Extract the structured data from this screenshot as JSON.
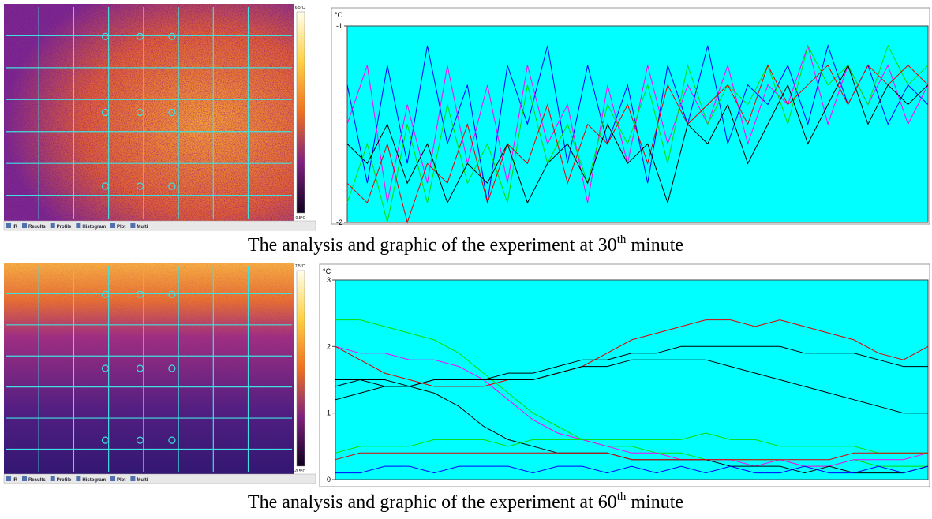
{
  "panels": [
    {
      "image": {
        "scale_max": "6.5°C",
        "scale_min": "-0.5°C",
        "tabs": [
          "IR",
          "Results",
          "Profile",
          "Histogram",
          "Plot",
          "Multi"
        ]
      },
      "chart_data": {
        "type": "line",
        "y_unit": "°C",
        "ylim": [
          -2,
          -1
        ],
        "yticks": [
          -1,
          -2
        ],
        "series": [
          {
            "color": "#0000ff",
            "values": [
              -1.3,
              -1.8,
              -1.2,
              -1.7,
              -1.1,
              -1.6,
              -1.3,
              -1.9,
              -1.2,
              -1.5,
              -1.1,
              -1.7,
              -1.2,
              -1.6,
              -1.3,
              -1.8,
              -1.2,
              -1.5,
              -1.1,
              -1.6,
              -1.3,
              -1.4,
              -1.2,
              -1.5,
              -1.1,
              -1.4,
              -1.2,
              -1.5,
              -1.3,
              -1.4
            ]
          },
          {
            "color": "#ff00ff",
            "values": [
              -1.5,
              -1.2,
              -1.9,
              -1.4,
              -1.8,
              -1.2,
              -1.7,
              -1.3,
              -1.8,
              -1.2,
              -1.6,
              -1.4,
              -1.9,
              -1.3,
              -1.7,
              -1.2,
              -1.6,
              -1.3,
              -1.5,
              -1.2,
              -1.6,
              -1.3,
              -1.4,
              -1.1,
              -1.5,
              -1.2,
              -1.4,
              -1.2,
              -1.5,
              -1.3
            ]
          },
          {
            "color": "#00dd00",
            "values": [
              -1.9,
              -1.6,
              -2.0,
              -1.5,
              -1.9,
              -1.4,
              -1.8,
              -1.6,
              -1.9,
              -1.3,
              -1.7,
              -1.5,
              -1.8,
              -1.4,
              -1.6,
              -1.3,
              -1.7,
              -1.2,
              -1.5,
              -1.3,
              -1.4,
              -1.2,
              -1.5,
              -1.1,
              -1.3,
              -1.2,
              -1.4,
              -1.1,
              -1.3,
              -1.2
            ]
          },
          {
            "color": "#dd0000",
            "values": [
              -1.8,
              -1.9,
              -1.6,
              -2.0,
              -1.7,
              -1.8,
              -1.5,
              -1.9,
              -1.6,
              -1.7,
              -1.4,
              -1.8,
              -1.5,
              -1.6,
              -1.4,
              -1.7,
              -1.3,
              -1.5,
              -1.4,
              -1.3,
              -1.5,
              -1.2,
              -1.4,
              -1.3,
              -1.2,
              -1.4,
              -1.2,
              -1.3,
              -1.2,
              -1.3
            ]
          },
          {
            "color": "#000000",
            "values": [
              -1.6,
              -1.7,
              -1.5,
              -1.8,
              -1.6,
              -1.9,
              -1.7,
              -1.8,
              -1.6,
              -1.9,
              -1.7,
              -1.6,
              -1.8,
              -1.5,
              -1.7,
              -1.6,
              -1.9,
              -1.5,
              -1.6,
              -1.4,
              -1.7,
              -1.5,
              -1.3,
              -1.6,
              -1.4,
              -1.2,
              -1.5,
              -1.3,
              -1.4,
              -1.3
            ]
          }
        ]
      },
      "caption": {
        "text": "The analysis and graphic of the experiment at 30",
        "sup": "th",
        "tail": " minute"
      }
    },
    {
      "image": {
        "scale_max": "7.5°C",
        "scale_min": "-0.5°C",
        "tabs": [
          "IR",
          "Results",
          "Profile",
          "Histogram",
          "Plot",
          "Multi"
        ]
      },
      "chart_data": {
        "type": "line",
        "y_unit": "°C",
        "ylim": [
          0,
          3
        ],
        "yticks": [
          0,
          1,
          2,
          3
        ],
        "series": [
          {
            "color": "#00dd00",
            "values": [
              2.4,
              2.4,
              2.3,
              2.2,
              2.1,
              1.9,
              1.6,
              1.3,
              1.0,
              0.8,
              0.6,
              0.5,
              0.5,
              0.4,
              0.4,
              0.3,
              0.3,
              0.3,
              0.3,
              0.2,
              0.2,
              0.3,
              0.2,
              0.2,
              0.2
            ]
          },
          {
            "color": "#ff00ff",
            "values": [
              2.0,
              1.9,
              1.9,
              1.8,
              1.8,
              1.7,
              1.5,
              1.2,
              0.9,
              0.7,
              0.6,
              0.5,
              0.4,
              0.4,
              0.3,
              0.3,
              0.3,
              0.2,
              0.3,
              0.2,
              0.2,
              0.3,
              0.3,
              0.3,
              0.4
            ]
          },
          {
            "color": "#dd0000",
            "values": [
              2.0,
              1.8,
              1.6,
              1.5,
              1.4,
              1.4,
              1.4,
              1.5,
              1.5,
              1.6,
              1.7,
              1.9,
              2.1,
              2.2,
              2.3,
              2.4,
              2.4,
              2.3,
              2.4,
              2.3,
              2.2,
              2.1,
              1.9,
              1.8,
              2.0
            ]
          },
          {
            "color": "#000000",
            "values": [
              1.5,
              1.5,
              1.5,
              1.4,
              1.5,
              1.5,
              1.5,
              1.6,
              1.6,
              1.7,
              1.8,
              1.8,
              1.9,
              1.9,
              2.0,
              2.0,
              2.0,
              2.0,
              2.0,
              1.9,
              1.9,
              1.9,
              1.8,
              1.7,
              1.7
            ]
          },
          {
            "color": "#000000",
            "values": [
              1.4,
              1.5,
              1.4,
              1.4,
              1.5,
              1.5,
              1.5,
              1.5,
              1.5,
              1.6,
              1.7,
              1.7,
              1.8,
              1.8,
              1.8,
              1.8,
              1.7,
              1.6,
              1.5,
              1.4,
              1.3,
              1.2,
              1.1,
              1.0,
              1.0
            ]
          },
          {
            "color": "#000000",
            "values": [
              1.2,
              1.3,
              1.4,
              1.4,
              1.3,
              1.1,
              0.8,
              0.6,
              0.5,
              0.4,
              0.4,
              0.4,
              0.3,
              0.3,
              0.3,
              0.3,
              0.2,
              0.2,
              0.2,
              0.1,
              0.2,
              0.1,
              0.1,
              0.1,
              0.2
            ]
          },
          {
            "color": "#00dd00",
            "values": [
              0.4,
              0.5,
              0.5,
              0.5,
              0.6,
              0.6,
              0.6,
              0.5,
              0.6,
              0.6,
              0.6,
              0.6,
              0.6,
              0.6,
              0.6,
              0.7,
              0.6,
              0.6,
              0.5,
              0.5,
              0.5,
              0.5,
              0.4,
              0.4,
              0.4
            ]
          },
          {
            "color": "#dd0000",
            "values": [
              0.3,
              0.4,
              0.4,
              0.4,
              0.4,
              0.4,
              0.4,
              0.4,
              0.4,
              0.4,
              0.4,
              0.4,
              0.3,
              0.3,
              0.3,
              0.3,
              0.3,
              0.3,
              0.3,
              0.3,
              0.3,
              0.4,
              0.4,
              0.4,
              0.4
            ]
          },
          {
            "color": "#0000ff",
            "values": [
              0.1,
              0.1,
              0.2,
              0.2,
              0.1,
              0.2,
              0.2,
              0.2,
              0.1,
              0.2,
              0.2,
              0.1,
              0.2,
              0.1,
              0.2,
              0.1,
              0.2,
              0.1,
              0.1,
              0.2,
              0.1,
              0.1,
              0.2,
              0.1,
              0.2
            ]
          }
        ]
      },
      "caption": {
        "text": "The analysis and graphic of the experiment at 60",
        "sup": "th",
        "tail": " minute"
      }
    }
  ]
}
